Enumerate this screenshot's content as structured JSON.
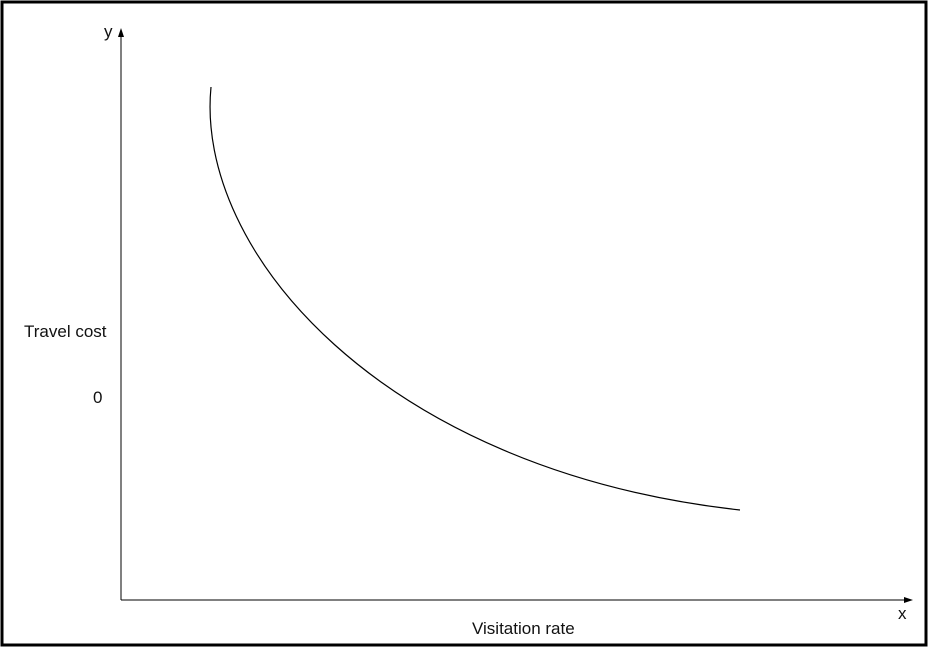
{
  "diagram": {
    "axis_y_symbol": "y",
    "axis_x_symbol": "x",
    "y_axis_label": "Travel cost",
    "x_axis_label": "Visitation rate",
    "y_tick_label": "0",
    "line_color": "#000000",
    "curve_shape": "downward-sloping convex demand curve"
  }
}
